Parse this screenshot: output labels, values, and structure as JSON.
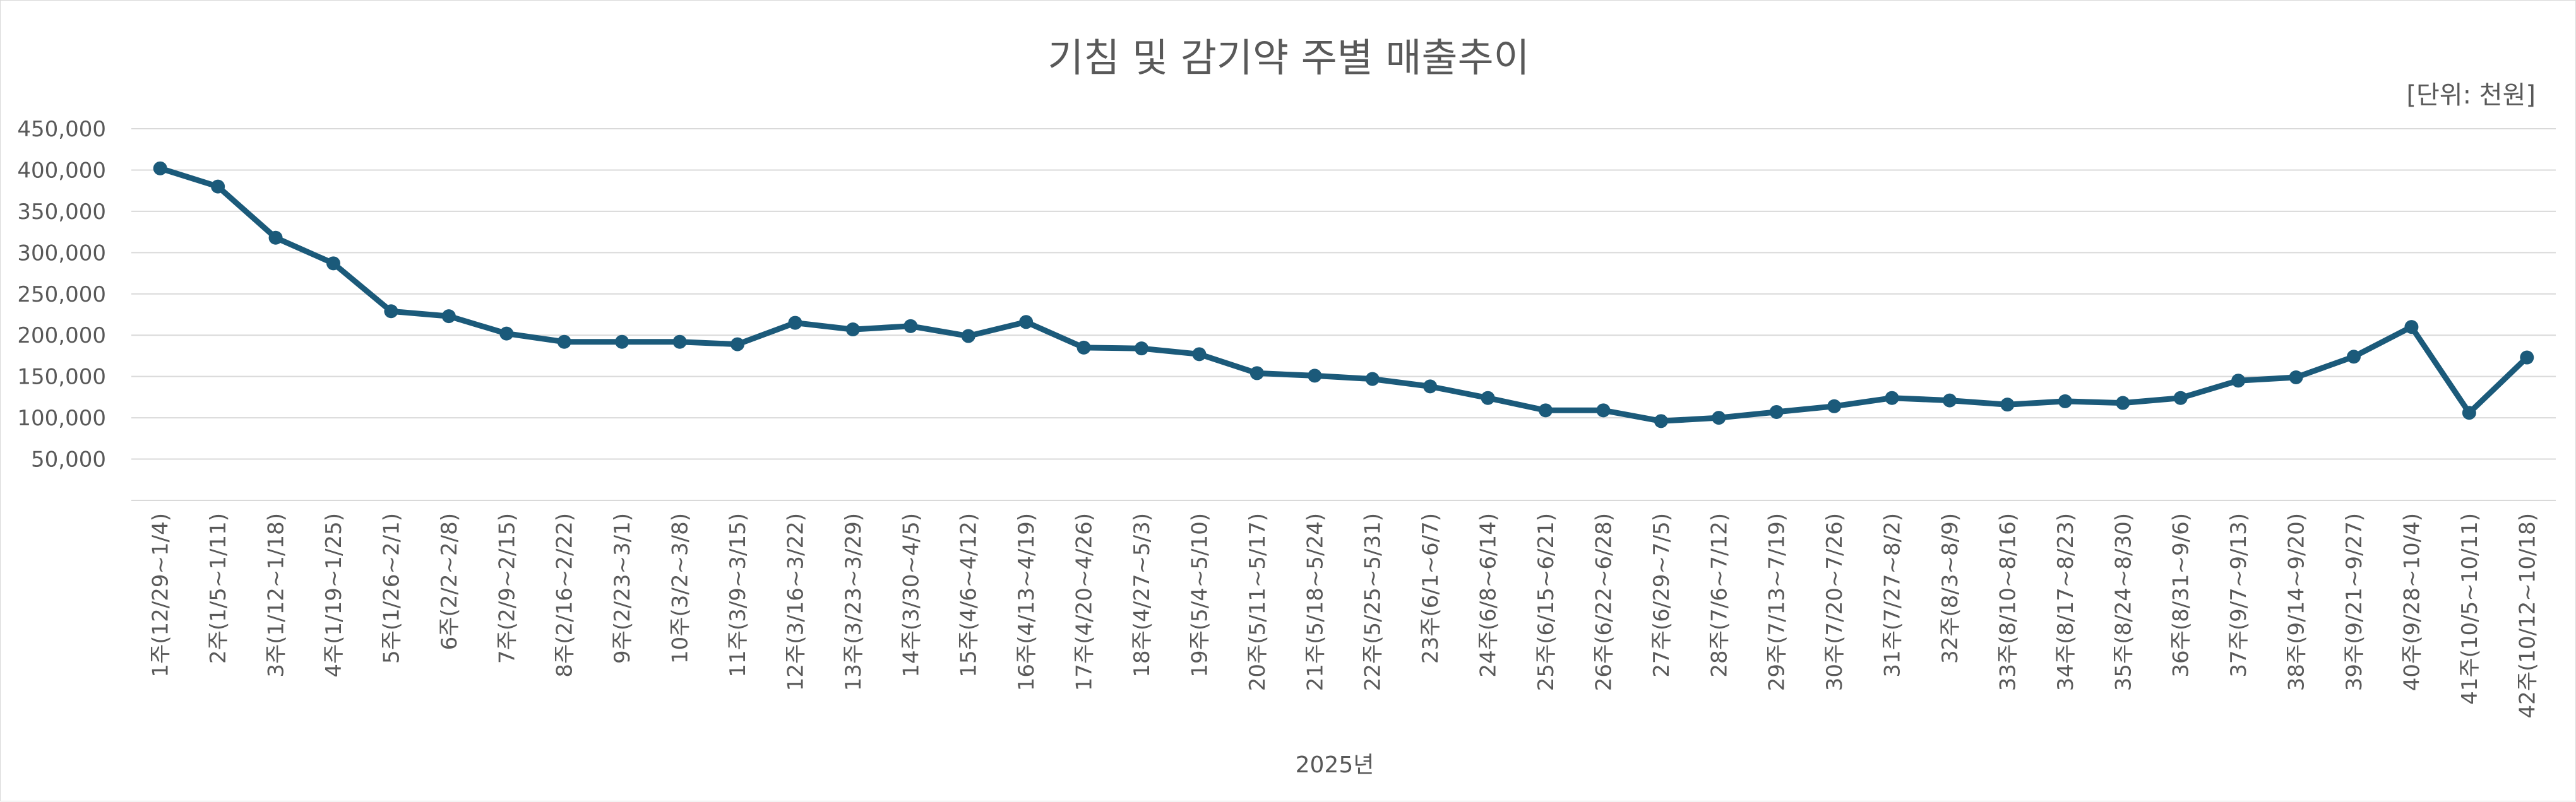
{
  "chart_data": {
    "type": "line",
    "title": "기침 및 감기약 주별 매출추이",
    "unit_label": "[단위: 천원]",
    "xlabel": "2025년",
    "ylabel": "",
    "ylim": [
      0,
      450000
    ],
    "y_ticks": [
      "",
      "50,000",
      "100,000",
      "150,000",
      "200,000",
      "250,000",
      "300,000",
      "350,000",
      "400,000",
      "450,000"
    ],
    "grid": true,
    "legend": "none",
    "colors": {
      "series": "#1b5a7a",
      "grid": "#d9d9d9",
      "text": "#595959"
    },
    "categories": [
      "1주(12/29~1/4)",
      "2주(1/5~1/11)",
      "3주(1/12~1/18)",
      "4주(1/19~1/25)",
      "5주(1/26~2/1)",
      "6주(2/2~2/8)",
      "7주(2/9~2/15)",
      "8주(2/16~2/22)",
      "9주(2/23~3/1)",
      "10주(3/2~3/8)",
      "11주(3/9~3/15)",
      "12주(3/16~3/22)",
      "13주(3/23~3/29)",
      "14주(3/30~4/5)",
      "15주(4/6~4/12)",
      "16주(4/13~4/19)",
      "17주(4/20~4/26)",
      "18주(4/27~5/3)",
      "19주(5/4~5/10)",
      "20주(5/11~5/17)",
      "21주(5/18~5/24)",
      "22주(5/25~5/31)",
      "23주(6/1~6/7)",
      "24주(6/8~6/14)",
      "25주(6/15~6/21)",
      "26주(6/22~6/28)",
      "27주(6/29~7/5)",
      "28주(7/6~7/12)",
      "29주(7/13~7/19)",
      "30주(7/20~7/26)",
      "31주(7/27~8/2)",
      "32주(8/3~8/9)",
      "33주(8/10~8/16)",
      "34주(8/17~8/23)",
      "35주(8/24~8/30)",
      "36주(8/31~9/6)",
      "37주(9/7~9/13)",
      "38주(9/14~9/20)",
      "39주(9/21~9/27)",
      "40주(9/28~10/4)",
      "41주(10/5~10/11)",
      "42주(10/12~10/18)"
    ],
    "series": [
      {
        "values": [
          402000,
          380000,
          318000,
          287000,
          229000,
          223000,
          202000,
          192000,
          192000,
          192000,
          189000,
          215000,
          207000,
          211000,
          199000,
          216000,
          185000,
          184000,
          177000,
          154000,
          151000,
          147000,
          138000,
          124000,
          109000,
          109000,
          96000,
          100000,
          107000,
          114000,
          124000,
          121000,
          116000,
          120000,
          118000,
          124000,
          145000,
          149000,
          174000,
          210000,
          106000,
          173000
        ]
      }
    ]
  }
}
